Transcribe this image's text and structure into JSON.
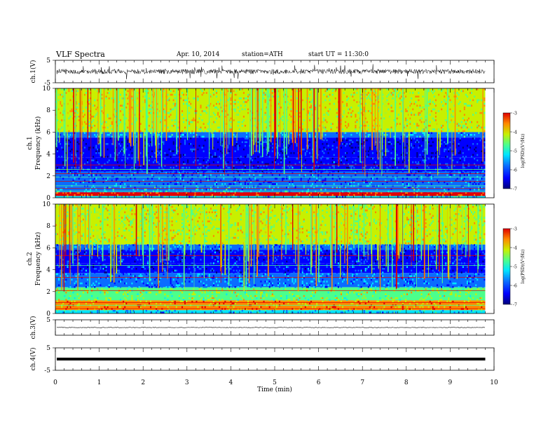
{
  "header": {
    "title": "VLF Spectra",
    "date": "Apr. 10, 2014",
    "station": "station=ATH",
    "start": "start UT = 11:30:0"
  },
  "colors": {
    "spectro_palette": [
      "#00007a",
      "#0000ff",
      "#0a6cff",
      "#00e6ff",
      "#4cff8c",
      "#c8f000",
      "#ff8a00",
      "#e00000"
    ]
  },
  "chart_data": [
    {
      "type": "line",
      "name": "ch1-waveform",
      "ylabel": "ch.1(V)",
      "ylim": [
        -5,
        5
      ],
      "yticks": [
        "5",
        "-5"
      ],
      "xlim": [
        0,
        10
      ],
      "baseline": 0
    },
    {
      "type": "heatmap",
      "name": "ch1-spectrogram",
      "ylabel": "ch.1 Frequency (kHz)",
      "ylim": [
        0,
        10
      ],
      "yticks": [
        "0",
        "2",
        "4",
        "6",
        "8",
        "10"
      ],
      "xlim": [
        0,
        10
      ],
      "data_extent_min": 9.8,
      "colorbar": {
        "label": "log(PSD)(V²/Hz)",
        "range": [
          -7,
          -3
        ],
        "ticks": [
          "-3",
          "-4",
          "-5",
          "-6",
          "-7"
        ]
      }
    },
    {
      "type": "heatmap",
      "name": "ch2-spectrogram",
      "ylabel": "ch.2 Frequency (kHz)",
      "ylim": [
        0,
        10
      ],
      "yticks": [
        "0",
        "2",
        "4",
        "6",
        "8",
        "10"
      ],
      "xlim": [
        0,
        10
      ],
      "data_extent_min": 9.8,
      "colorbar": {
        "label": "log(PSD)(V²/Hz)",
        "range": [
          -7,
          -3
        ],
        "ticks": [
          "-3",
          "-4",
          "-5",
          "-6",
          "-7"
        ]
      }
    },
    {
      "type": "line",
      "name": "ch3-waveform",
      "ylabel": "ch.3(V)",
      "ylim": [
        -5,
        5
      ],
      "yticks": [
        "5"
      ],
      "xlim": [
        0,
        10
      ],
      "baseline": 0
    },
    {
      "type": "line",
      "name": "ch4-waveform",
      "ylabel": "ch.4(V)",
      "ylim": [
        -5,
        5
      ],
      "yticks": [
        "5",
        "-5"
      ],
      "xlim": [
        0,
        10
      ],
      "baseline": 0,
      "xlabel": "Time (min)",
      "xticks": [
        "0",
        "1",
        "2",
        "3",
        "4",
        "5",
        "6",
        "7",
        "8",
        "9",
        "10"
      ]
    }
  ]
}
